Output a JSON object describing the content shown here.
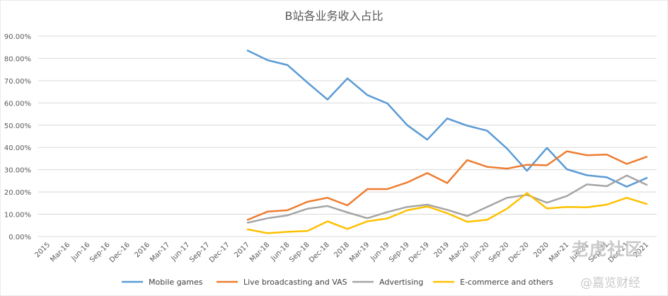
{
  "chart_data": {
    "type": "line",
    "title": "B站各业务收入占比",
    "xlabel": "",
    "ylabel": "",
    "ylim": [
      0,
      90
    ],
    "y_ticks": [
      "90.00%",
      "80.00%",
      "70.00%",
      "60.00%",
      "50.00%",
      "40.00%",
      "30.00%",
      "20.00%",
      "10.00%",
      "0.00%"
    ],
    "grid": "horizontal",
    "legend_position": "bottom",
    "x": [
      "2015",
      "Mar-16",
      "Jun-16",
      "Sep-16",
      "Dec-16",
      "2016",
      "Mar-17",
      "Jun-17",
      "Sep-17",
      "Dec-17",
      "2017",
      "Mar-18",
      "Jun-18",
      "Sep-18",
      "Dec-18",
      "2018",
      "Mar-19",
      "Jun-19",
      "Sep-19",
      "Dec-19",
      "2019",
      "Mar-20",
      "Jun-20",
      "Sep-20",
      "Dec-20",
      "2020",
      "Mar-21",
      "Jun-21",
      "Sep-21",
      "Dec-21",
      "2021"
    ],
    "series": [
      {
        "name": "Mobile games",
        "color": "#5b9bd5",
        "values": [
          null,
          null,
          null,
          null,
          null,
          null,
          null,
          null,
          null,
          null,
          83.5,
          79.2,
          77.0,
          69.1,
          61.5,
          71.0,
          63.5,
          59.8,
          50.0,
          43.5,
          53.0,
          49.8,
          47.5,
          39.5,
          29.5,
          39.8,
          30.2,
          27.5,
          26.6,
          22.4,
          26.3
        ]
      },
      {
        "name": "Live broadcasting and VAS",
        "color": "#ed7d31",
        "values": [
          null,
          null,
          null,
          null,
          null,
          null,
          null,
          null,
          null,
          null,
          7.5,
          11.2,
          11.8,
          15.6,
          17.4,
          14.0,
          21.3,
          21.3,
          24.3,
          28.5,
          24.0,
          34.3,
          31.3,
          30.5,
          32.2,
          32.0,
          38.3,
          36.5,
          36.8,
          32.6,
          35.8
        ]
      },
      {
        "name": "Advertising",
        "color": "#a5a5a5",
        "values": [
          null,
          null,
          null,
          null,
          null,
          null,
          null,
          null,
          null,
          null,
          6.2,
          8.2,
          9.5,
          12.5,
          13.7,
          10.8,
          8.2,
          11.0,
          13.3,
          14.3,
          12.0,
          9.2,
          13.3,
          17.4,
          18.7,
          15.2,
          18.2,
          23.4,
          22.6,
          27.4,
          23.2
        ]
      },
      {
        "name": "E-commerce and others",
        "color": "#ffc000",
        "values": [
          null,
          null,
          null,
          null,
          null,
          null,
          null,
          null,
          null,
          null,
          3.2,
          1.5,
          2.1,
          2.5,
          6.8,
          3.4,
          6.8,
          8.1,
          11.8,
          13.5,
          10.5,
          6.6,
          7.5,
          12.5,
          19.5,
          12.6,
          13.3,
          13.1,
          14.3,
          17.4,
          14.6
        ]
      }
    ]
  },
  "watermarks": [
    "老虎社区",
    "@嘉览财经"
  ]
}
